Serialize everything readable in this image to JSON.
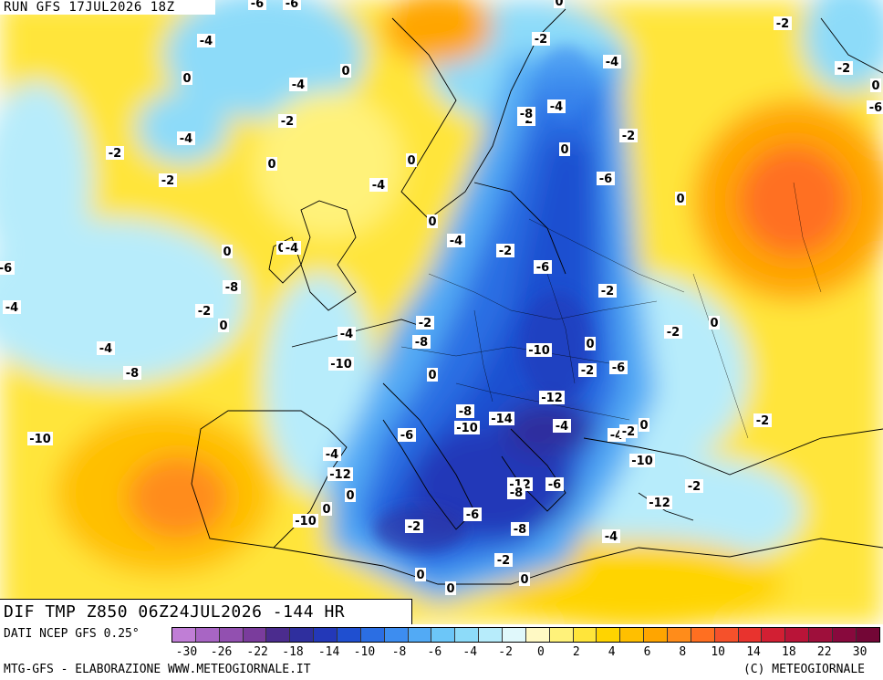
{
  "run_label": "RUN GFS 17JUL2026 18Z",
  "title": "DIF TMP Z850 06Z24JUL2026 -144 HR",
  "source": "DATI NCEP GFS 0.25°",
  "footer_left": "MTG-GFS - ELABORAZIONE WWW.METEOGIORNALE.IT",
  "footer_right": "(C) METEOGIORNALE",
  "legend": {
    "colors": [
      "#c07ed6",
      "#a865c4",
      "#9250b0",
      "#7a3c9c",
      "#4b2c8e",
      "#2f2f9e",
      "#2338b8",
      "#1f4fd0",
      "#2b6ee3",
      "#3d8df0",
      "#52aaf5",
      "#6cc6f8",
      "#8ddbf9",
      "#b7ecfb",
      "#e0f8fb",
      "#fff9c4",
      "#fff27a",
      "#ffe53a",
      "#ffd400",
      "#ffbf00",
      "#ffa500",
      "#ff8c1a",
      "#ff6f21",
      "#f5512b",
      "#e8332e",
      "#d21f33",
      "#b91438",
      "#9e0f3b",
      "#88093d",
      "#730636"
    ],
    "tick_labels": [
      "-30",
      "-26",
      "-22",
      "-18",
      "-14",
      "-10",
      "-8",
      "-6",
      "-4",
      "-2",
      "0",
      "2",
      "4",
      "6",
      "8",
      "10",
      "14",
      "18",
      "22",
      "30"
    ]
  },
  "map": {
    "land_color": "#000000",
    "contour_labels": [
      "-6",
      "-6",
      "0",
      "-2",
      "-4",
      "0",
      "-4",
      "-2",
      "0",
      "-2",
      "0",
      "-4",
      "-2",
      "-4",
      "-4",
      "-2",
      "-8",
      "-6",
      "-2",
      "0",
      "-2",
      "0",
      "0",
      "-4",
      "-2",
      "-6",
      "0",
      "0",
      "-4",
      "0",
      "0",
      "-2",
      "-4",
      "-6",
      "-8",
      "-2",
      "-6",
      "-4",
      "-2",
      "0",
      "-2",
      "-4",
      "-2",
      "-8",
      "-10",
      "0",
      "0",
      "-10",
      "-8",
      "-4",
      "-2",
      "-6",
      "0",
      "-12",
      "-8",
      "-10",
      "-2",
      "-14",
      "-4",
      "-4",
      "0",
      "-6",
      "-10",
      "-4",
      "-2",
      "-12",
      "-12",
      "-8",
      "0",
      "-6",
      "-2",
      "0",
      "-10",
      "-12",
      "-10",
      "-2",
      "-6",
      "-8",
      "-4",
      "0",
      "-2",
      "0",
      "0"
    ]
  }
}
